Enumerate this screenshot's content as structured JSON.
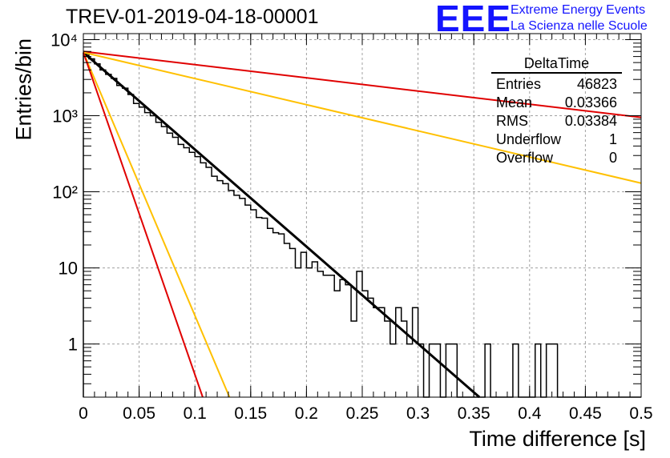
{
  "header": {
    "title": "TREV-01-2019-04-18-00001",
    "logo": "EEE",
    "logo_line1": "Extreme Energy Events",
    "logo_line2": "La Scienza nelle Scuole"
  },
  "stats": {
    "name": "DeltaTime",
    "rows": [
      {
        "label": "Entries",
        "value": "46823"
      },
      {
        "label": "Mean",
        "value": "0.03366"
      },
      {
        "label": "RMS",
        "value": "0.03384"
      },
      {
        "label": "Underflow",
        "value": "1"
      },
      {
        "label": "Overflow",
        "value": "0"
      }
    ]
  },
  "colors": {
    "histogram": "#000000",
    "fit": "#000000",
    "red_curve": "#e00000",
    "orange_curve": "#ffc000",
    "grid": "#a0a0a0",
    "logo": "#1414ff"
  },
  "chart_data": {
    "type": "histogram",
    "title": "TREV-01-2019-04-18-00001",
    "xlabel": "Time difference [s]",
    "ylabel": "Entries/bin",
    "yscale": "log",
    "xlim": [
      0,
      0.5
    ],
    "ylim": [
      0.2,
      12000
    ],
    "grid": true,
    "x_ticks": [
      0,
      0.05,
      0.1,
      0.15,
      0.2,
      0.25,
      0.3,
      0.35,
      0.4,
      0.45,
      0.5
    ],
    "x_tick_labels": [
      "0",
      "0.05",
      "0.1",
      "0.15",
      "0.2",
      "0.25",
      "0.3",
      "0.35",
      "0.4",
      "0.45",
      "0.5"
    ],
    "y_ticks": [
      1,
      10,
      100,
      1000,
      10000
    ],
    "y_tick_labels": [
      "1",
      "10",
      "10²",
      "10³",
      "10⁴"
    ],
    "bin_width": 0.005,
    "bins": [
      {
        "x": 0.0,
        "y": 6500
      },
      {
        "x": 0.005,
        "y": 5600
      },
      {
        "x": 0.01,
        "y": 4800
      },
      {
        "x": 0.015,
        "y": 4000
      },
      {
        "x": 0.02,
        "y": 3500
      },
      {
        "x": 0.025,
        "y": 3100
      },
      {
        "x": 0.03,
        "y": 2500
      },
      {
        "x": 0.035,
        "y": 2300
      },
      {
        "x": 0.04,
        "y": 1900
      },
      {
        "x": 0.045,
        "y": 1450
      },
      {
        "x": 0.05,
        "y": 1300
      },
      {
        "x": 0.055,
        "y": 1100
      },
      {
        "x": 0.06,
        "y": 1000
      },
      {
        "x": 0.065,
        "y": 820
      },
      {
        "x": 0.07,
        "y": 720
      },
      {
        "x": 0.075,
        "y": 590
      },
      {
        "x": 0.08,
        "y": 520
      },
      {
        "x": 0.085,
        "y": 420
      },
      {
        "x": 0.09,
        "y": 380
      },
      {
        "x": 0.095,
        "y": 330
      },
      {
        "x": 0.1,
        "y": 290
      },
      {
        "x": 0.105,
        "y": 240
      },
      {
        "x": 0.11,
        "y": 210
      },
      {
        "x": 0.115,
        "y": 160
      },
      {
        "x": 0.12,
        "y": 140
      },
      {
        "x": 0.125,
        "y": 128
      },
      {
        "x": 0.13,
        "y": 104
      },
      {
        "x": 0.135,
        "y": 90
      },
      {
        "x": 0.14,
        "y": 82
      },
      {
        "x": 0.145,
        "y": 67
      },
      {
        "x": 0.15,
        "y": 58
      },
      {
        "x": 0.155,
        "y": 46
      },
      {
        "x": 0.16,
        "y": 45
      },
      {
        "x": 0.165,
        "y": 33
      },
      {
        "x": 0.17,
        "y": 29
      },
      {
        "x": 0.175,
        "y": 28
      },
      {
        "x": 0.18,
        "y": 21
      },
      {
        "x": 0.185,
        "y": 18
      },
      {
        "x": 0.19,
        "y": 10
      },
      {
        "x": 0.195,
        "y": 16
      },
      {
        "x": 0.2,
        "y": 10
      },
      {
        "x": 0.205,
        "y": 12
      },
      {
        "x": 0.21,
        "y": 9
      },
      {
        "x": 0.215,
        "y": 8
      },
      {
        "x": 0.22,
        "y": 8
      },
      {
        "x": 0.225,
        "y": 5
      },
      {
        "x": 0.23,
        "y": 7
      },
      {
        "x": 0.235,
        "y": 6
      },
      {
        "x": 0.24,
        "y": 2
      },
      {
        "x": 0.245,
        "y": 9
      },
      {
        "x": 0.25,
        "y": 5
      },
      {
        "x": 0.255,
        "y": 4
      },
      {
        "x": 0.26,
        "y": 3
      },
      {
        "x": 0.265,
        "y": 3
      },
      {
        "x": 0.27,
        "y": 2
      },
      {
        "x": 0.275,
        "y": 1
      },
      {
        "x": 0.28,
        "y": 3
      },
      {
        "x": 0.285,
        "y": 2
      },
      {
        "x": 0.29,
        "y": 1
      },
      {
        "x": 0.295,
        "y": 3
      },
      {
        "x": 0.3,
        "y": 1
      },
      {
        "x": 0.305,
        "y": 0
      },
      {
        "x": 0.31,
        "y": 1
      },
      {
        "x": 0.315,
        "y": 1
      },
      {
        "x": 0.32,
        "y": 0
      },
      {
        "x": 0.325,
        "y": 1
      },
      {
        "x": 0.33,
        "y": 1
      },
      {
        "x": 0.335,
        "y": 0
      },
      {
        "x": 0.34,
        "y": 0
      },
      {
        "x": 0.345,
        "y": 0
      },
      {
        "x": 0.35,
        "y": 0
      },
      {
        "x": 0.355,
        "y": 0
      },
      {
        "x": 0.36,
        "y": 1
      },
      {
        "x": 0.365,
        "y": 0
      },
      {
        "x": 0.37,
        "y": 0
      },
      {
        "x": 0.375,
        "y": 0
      },
      {
        "x": 0.38,
        "y": 0
      },
      {
        "x": 0.385,
        "y": 1
      },
      {
        "x": 0.39,
        "y": 0
      },
      {
        "x": 0.395,
        "y": 0
      },
      {
        "x": 0.4,
        "y": 0
      },
      {
        "x": 0.405,
        "y": 1
      },
      {
        "x": 0.41,
        "y": 0
      },
      {
        "x": 0.415,
        "y": 1
      },
      {
        "x": 0.42,
        "y": 1
      },
      {
        "x": 0.425,
        "y": 0
      },
      {
        "x": 0.43,
        "y": 0
      },
      {
        "x": 0.435,
        "y": 0
      },
      {
        "x": 0.44,
        "y": 0
      },
      {
        "x": 0.445,
        "y": 0
      },
      {
        "x": 0.45,
        "y": 0
      },
      {
        "x": 0.455,
        "y": 0
      },
      {
        "x": 0.46,
        "y": 0
      },
      {
        "x": 0.465,
        "y": 0
      },
      {
        "x": 0.47,
        "y": 0
      },
      {
        "x": 0.475,
        "y": 0
      },
      {
        "x": 0.48,
        "y": 0
      },
      {
        "x": 0.485,
        "y": 0
      },
      {
        "x": 0.49,
        "y": 0
      },
      {
        "x": 0.495,
        "y": 0
      }
    ],
    "curves": [
      {
        "color": "#000000",
        "points": [
          [
            0,
            6800
          ],
          [
            0.355,
            0.2
          ]
        ]
      },
      {
        "color": "#e00000",
        "points": [
          [
            0,
            7000
          ],
          [
            0.5,
            950
          ]
        ]
      },
      {
        "color": "#ffc000",
        "points": [
          [
            0,
            6800
          ],
          [
            0.5,
            130
          ]
        ]
      },
      {
        "color": "#ffc000",
        "points": [
          [
            0,
            6800
          ],
          [
            0.131,
            0.2
          ]
        ]
      },
      {
        "color": "#e00000",
        "points": [
          [
            0,
            6800
          ],
          [
            0.107,
            0.2
          ]
        ]
      }
    ]
  }
}
